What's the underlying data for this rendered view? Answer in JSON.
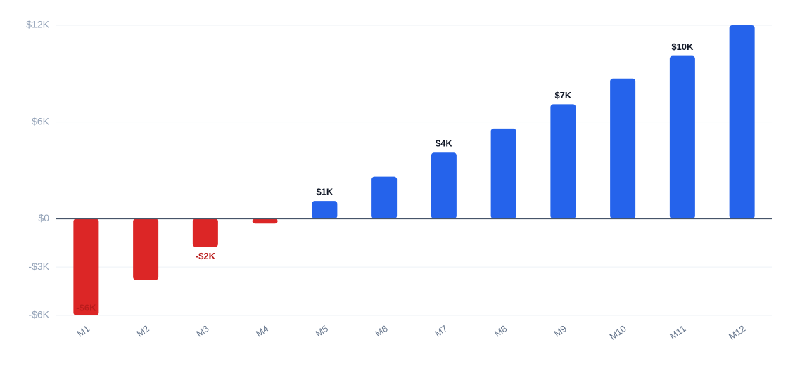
{
  "chart_data": {
    "type": "bar",
    "categories": [
      "M1",
      "M2",
      "M3",
      "M4",
      "M5",
      "M6",
      "M7",
      "M8",
      "M9",
      "M10",
      "M11",
      "M12"
    ],
    "values": [
      -6000,
      -3800,
      -1750,
      -300,
      1100,
      2600,
      4100,
      5600,
      7100,
      8700,
      10100,
      12000
    ],
    "value_labels": [
      "-$6K",
      null,
      "-$2K",
      null,
      "$1K",
      null,
      "$4K",
      null,
      "$7K",
      null,
      "$10K",
      null
    ],
    "positive_color": "#2563eb",
    "negative_color": "#dc2626",
    "ylim": [
      -6000,
      12000
    ],
    "yticks": [
      {
        "value": -6000,
        "label": "-$6K"
      },
      {
        "value": -3000,
        "label": "-$3K"
      },
      {
        "value": 0,
        "label": "$0"
      },
      {
        "value": 6000,
        "label": "$6K"
      },
      {
        "value": 12000,
        "label": "$12K"
      }
    ],
    "grid": true
  }
}
